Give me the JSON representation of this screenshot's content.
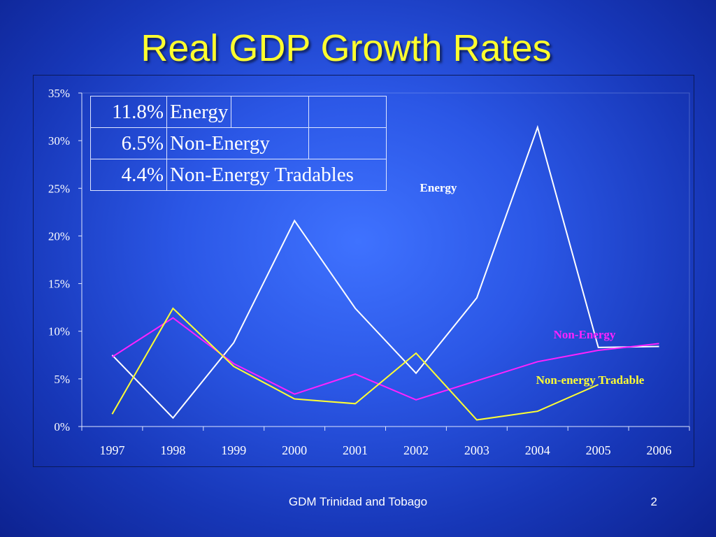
{
  "slide": {
    "title": "Real GDP Growth Rates",
    "footer": "GDM Trinidad and Tobago",
    "page_number": "2"
  },
  "table": {
    "rows": [
      {
        "value": "11.8%",
        "label": "Energy"
      },
      {
        "value": "6.5%",
        "label": "Non-Energy"
      },
      {
        "value": "4.4%",
        "label": "Non-Energy Tradables"
      }
    ]
  },
  "colors": {
    "energy": "#ffffff",
    "non_energy": "#ff22ff",
    "non_energy_tradable": "#ffff33",
    "title": "#ffff2e"
  },
  "chart_data": {
    "type": "line",
    "title": "",
    "xlabel": "",
    "ylabel": "",
    "ylim": [
      0,
      35
    ],
    "yticks": [
      "0%",
      "5%",
      "10%",
      "15%",
      "20%",
      "25%",
      "30%",
      "35%"
    ],
    "categories": [
      "1997",
      "1998",
      "1999",
      "2000",
      "2001",
      "2002",
      "2003",
      "2004",
      "2005",
      "2006"
    ],
    "series": [
      {
        "name": "Energy",
        "color": "#ffffff",
        "values": [
          7.5,
          0.9,
          8.8,
          21.6,
          12.4,
          5.6,
          13.5,
          31.4,
          8.3,
          8.4
        ]
      },
      {
        "name": "Non-Energy",
        "color": "#ff22ff",
        "values": [
          7.3,
          11.4,
          6.6,
          3.4,
          5.5,
          2.8,
          4.8,
          6.8,
          8.0,
          8.7
        ]
      },
      {
        "name": "Non-energy Tradable",
        "color": "#ffff33",
        "values": [
          1.3,
          12.4,
          6.3,
          2.9,
          2.4,
          7.7,
          0.7,
          1.6,
          4.4,
          null
        ]
      }
    ],
    "grid": false,
    "legend": "inline labels"
  }
}
